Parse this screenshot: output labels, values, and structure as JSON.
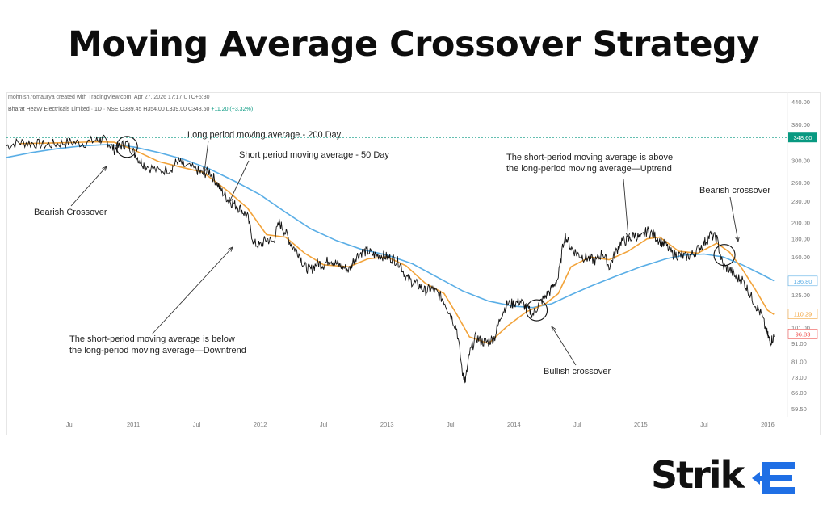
{
  "page_title": "Moving Average Crossover Strategy",
  "header": {
    "credit": "mohnish76maurya created with TradingView.com, Apr 27, 2026 17:17 UTC+5:30",
    "symbol": "Bharat Heavy Electricals Limited · 1D · NSE",
    "ohlc": "O339.45 H354.00 L339.00 C348.60",
    "change": "+11.20 (+3.32%)"
  },
  "logo": {
    "text": "Strike",
    "accent_color": "#1f6fe5"
  },
  "colors": {
    "price": "#111111",
    "sma_long": "#5aaee6",
    "sma_short": "#f2a33a",
    "last_price": "#089981",
    "last_price_label": "#ef5350"
  },
  "chart_data": {
    "type": "line",
    "title": "Moving Average Crossover Strategy",
    "scale": "log",
    "ylim": [
      57,
      440
    ],
    "y_ticks": [
      440,
      380,
      350,
      300,
      260,
      230,
      200,
      180,
      160,
      140,
      125,
      113,
      101,
      91,
      81,
      73,
      66,
      59.5
    ],
    "x_ticks": [
      {
        "label": "Jul",
        "t": 0.5
      },
      {
        "label": "2011",
        "t": 1.0
      },
      {
        "label": "Jul",
        "t": 1.5
      },
      {
        "label": "2012",
        "t": 2.0
      },
      {
        "label": "Jul",
        "t": 2.5
      },
      {
        "label": "2013",
        "t": 3.0
      },
      {
        "label": "Jul",
        "t": 3.5
      },
      {
        "label": "2014",
        "t": 4.0
      },
      {
        "label": "Jul",
        "t": 4.5
      },
      {
        "label": "2015",
        "t": 5.0
      },
      {
        "label": "Jul",
        "t": 5.5
      },
      {
        "label": "2016",
        "t": 6.0
      }
    ],
    "x_range": [
      0.0,
      6.08
    ],
    "series": [
      {
        "key": "price",
        "points": [
          [
            0.0,
            330
          ],
          [
            0.1,
            338
          ],
          [
            0.2,
            336
          ],
          [
            0.3,
            332
          ],
          [
            0.4,
            335
          ],
          [
            0.5,
            338
          ],
          [
            0.6,
            336
          ],
          [
            0.7,
            342
          ],
          [
            0.75,
            345
          ],
          [
            0.8,
            338
          ],
          [
            0.85,
            322
          ],
          [
            0.9,
            330
          ],
          [
            0.95,
            335
          ],
          [
            1.0,
            318
          ],
          [
            1.05,
            300
          ],
          [
            1.1,
            290
          ],
          [
            1.2,
            280
          ],
          [
            1.3,
            285
          ],
          [
            1.35,
            300
          ],
          [
            1.4,
            290
          ],
          [
            1.5,
            282
          ],
          [
            1.55,
            275
          ],
          [
            1.6,
            280
          ],
          [
            1.65,
            262
          ],
          [
            1.7,
            245
          ],
          [
            1.75,
            232
          ],
          [
            1.8,
            225
          ],
          [
            1.85,
            218
          ],
          [
            1.9,
            208
          ],
          [
            1.95,
            175
          ],
          [
            2.0,
            172
          ],
          [
            2.05,
            180
          ],
          [
            2.1,
            176
          ],
          [
            2.15,
            200
          ],
          [
            2.2,
            188
          ],
          [
            2.25,
            172
          ],
          [
            2.3,
            165
          ],
          [
            2.35,
            150
          ],
          [
            2.4,
            147
          ],
          [
            2.45,
            154
          ],
          [
            2.5,
            152
          ],
          [
            2.55,
            158
          ],
          [
            2.6,
            153
          ],
          [
            2.65,
            150
          ],
          [
            2.7,
            147
          ],
          [
            2.75,
            160
          ],
          [
            2.8,
            165
          ],
          [
            2.85,
            166
          ],
          [
            2.9,
            162
          ],
          [
            2.95,
            162
          ],
          [
            3.0,
            160
          ],
          [
            3.05,
            158
          ],
          [
            3.1,
            154
          ],
          [
            3.15,
            140
          ],
          [
            3.2,
            136
          ],
          [
            3.25,
            133
          ],
          [
            3.3,
            128
          ],
          [
            3.35,
            130
          ],
          [
            3.4,
            126
          ],
          [
            3.45,
            120
          ],
          [
            3.5,
            110
          ],
          [
            3.55,
            100
          ],
          [
            3.6,
            73
          ],
          [
            3.62,
            72
          ],
          [
            3.65,
            85
          ],
          [
            3.7,
            95
          ],
          [
            3.75,
            92
          ],
          [
            3.8,
            92
          ],
          [
            3.85,
            95
          ],
          [
            3.9,
            110
          ],
          [
            3.95,
            118
          ],
          [
            4.0,
            118
          ],
          [
            4.05,
            120
          ],
          [
            4.1,
            115
          ],
          [
            4.15,
            110
          ],
          [
            4.2,
            118
          ],
          [
            4.25,
            124
          ],
          [
            4.3,
            130
          ],
          [
            4.35,
            140
          ],
          [
            4.4,
            185
          ],
          [
            4.45,
            170
          ],
          [
            4.5,
            163
          ],
          [
            4.55,
            160
          ],
          [
            4.6,
            158
          ],
          [
            4.65,
            156
          ],
          [
            4.7,
            165
          ],
          [
            4.75,
            150
          ],
          [
            4.8,
            164
          ],
          [
            4.85,
            178
          ],
          [
            4.9,
            178
          ],
          [
            4.95,
            185
          ],
          [
            5.0,
            180
          ],
          [
            5.05,
            190
          ],
          [
            5.1,
            185
          ],
          [
            5.15,
            178
          ],
          [
            5.2,
            172
          ],
          [
            5.25,
            163
          ],
          [
            5.3,
            162
          ],
          [
            5.35,
            160
          ],
          [
            5.4,
            162
          ],
          [
            5.45,
            168
          ],
          [
            5.5,
            175
          ],
          [
            5.55,
            185
          ],
          [
            5.6,
            180
          ],
          [
            5.65,
            150
          ],
          [
            5.7,
            148
          ],
          [
            5.75,
            140
          ],
          [
            5.8,
            138
          ],
          [
            5.85,
            128
          ],
          [
            5.9,
            118
          ],
          [
            5.95,
            110
          ],
          [
            6.0,
            96
          ],
          [
            6.02,
            92
          ],
          [
            6.05,
            95
          ]
        ]
      },
      {
        "key": "sma_short",
        "name": "Short period moving average - 50 Day",
        "points": [
          [
            0.1,
            335
          ],
          [
            0.3,
            336
          ],
          [
            0.5,
            337
          ],
          [
            0.7,
            339
          ],
          [
            0.85,
            338
          ],
          [
            1.0,
            322
          ],
          [
            1.2,
            298
          ],
          [
            1.4,
            286
          ],
          [
            1.55,
            278
          ],
          [
            1.75,
            245
          ],
          [
            1.9,
            220
          ],
          [
            2.05,
            185
          ],
          [
            2.2,
            182
          ],
          [
            2.35,
            164
          ],
          [
            2.5,
            152
          ],
          [
            2.7,
            150
          ],
          [
            2.85,
            158
          ],
          [
            3.0,
            160
          ],
          [
            3.15,
            151
          ],
          [
            3.3,
            135
          ],
          [
            3.45,
            126
          ],
          [
            3.55,
            110
          ],
          [
            3.65,
            95
          ],
          [
            3.8,
            91
          ],
          [
            3.95,
            102
          ],
          [
            4.1,
            112
          ],
          [
            4.25,
            118
          ],
          [
            4.35,
            126
          ],
          [
            4.45,
            150
          ],
          [
            4.6,
            160
          ],
          [
            4.75,
            157
          ],
          [
            4.9,
            166
          ],
          [
            5.05,
            180
          ],
          [
            5.15,
            182
          ],
          [
            5.3,
            166
          ],
          [
            5.45,
            164
          ],
          [
            5.6,
            175
          ],
          [
            5.7,
            165
          ],
          [
            5.8,
            148
          ],
          [
            5.9,
            130
          ],
          [
            6.0,
            113
          ],
          [
            6.05,
            110
          ]
        ]
      },
      {
        "key": "sma_long",
        "name": "Long period moving average - 200 Day",
        "points": [
          [
            0.0,
            306
          ],
          [
            0.2,
            316
          ],
          [
            0.4,
            324
          ],
          [
            0.6,
            330
          ],
          [
            0.8,
            333
          ],
          [
            1.0,
            328
          ],
          [
            1.2,
            316
          ],
          [
            1.4,
            302
          ],
          [
            1.6,
            284
          ],
          [
            1.8,
            262
          ],
          [
            2.0,
            240
          ],
          [
            2.2,
            214
          ],
          [
            2.4,
            192
          ],
          [
            2.6,
            178
          ],
          [
            2.8,
            168
          ],
          [
            3.0,
            162
          ],
          [
            3.2,
            153
          ],
          [
            3.4,
            140
          ],
          [
            3.6,
            128
          ],
          [
            3.8,
            120
          ],
          [
            4.0,
            116
          ],
          [
            4.15,
            115
          ],
          [
            4.3,
            118
          ],
          [
            4.45,
            125
          ],
          [
            4.6,
            132
          ],
          [
            4.8,
            141
          ],
          [
            5.0,
            150
          ],
          [
            5.2,
            158
          ],
          [
            5.35,
            162
          ],
          [
            5.5,
            163
          ],
          [
            5.65,
            160
          ],
          [
            5.8,
            152
          ],
          [
            5.95,
            143
          ],
          [
            6.05,
            137
          ]
        ]
      }
    ],
    "last_values": {
      "price": "348.60",
      "sma_long": "136.80",
      "sma_short": "110.29",
      "price_low": "96.83"
    },
    "annotations": [
      {
        "text": "Long period moving average - 200 Day"
      },
      {
        "text": "Short period moving average - 50 Day"
      },
      {
        "text": "Bearish Crossover"
      },
      {
        "text": "The short-period moving average is below"
      },
      {
        "text": "the long-period moving average—Downtrend"
      },
      {
        "text": "Bullish crossover"
      },
      {
        "text": "The short-period moving average is above"
      },
      {
        "text": "the long-period moving average—Uptrend"
      },
      {
        "text": "Bearish crossover"
      }
    ]
  }
}
